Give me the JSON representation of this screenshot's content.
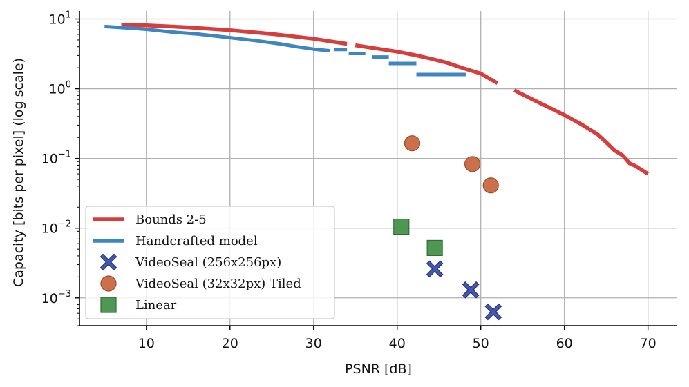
{
  "chart_data": {
    "type": "line",
    "xlabel": "PSNR [dB]",
    "ylabel": "Capacity [bits per pixel] (log scale)",
    "yscale": "log",
    "xlim": [
      2,
      73.5
    ],
    "ylim": [
      0.0004,
      13
    ],
    "xticks": [
      10,
      20,
      30,
      40,
      50,
      60,
      70
    ],
    "yticks": [
      {
        "value": 0.001,
        "base": "10",
        "exp": "−3"
      },
      {
        "value": 0.01,
        "base": "10",
        "exp": "−2"
      },
      {
        "value": 0.1,
        "base": "10",
        "exp": "−1"
      },
      {
        "value": 1,
        "base": "10",
        "exp": "0"
      },
      {
        "value": 10,
        "base": "10",
        "exp": "1"
      }
    ],
    "grid": true,
    "legend_position": "lower-left",
    "series": [
      {
        "name": "Bounds 2-5",
        "kind": "line",
        "color": "#d63e3e",
        "segments": [
          [
            [
              7,
              8.2
            ],
            [
              10,
              8.1
            ],
            [
              15,
              7.6
            ],
            [
              20,
              6.9
            ],
            [
              25,
              6.1
            ],
            [
              30,
              5.2
            ],
            [
              34,
              4.4
            ]
          ],
          [
            [
              35,
              4.2
            ],
            [
              38,
              3.7
            ],
            [
              40,
              3.4
            ],
            [
              42,
              3.05
            ],
            [
              44,
              2.7
            ],
            [
              46,
              2.35
            ],
            [
              48,
              1.95
            ],
            [
              50,
              1.65
            ],
            [
              52,
              1.2
            ]
          ],
          [
            [
              54,
              0.95
            ],
            [
              56,
              0.72
            ],
            [
              58,
              0.55
            ],
            [
              60,
              0.42
            ],
            [
              62,
              0.31
            ],
            [
              64,
              0.22
            ],
            [
              65,
              0.17
            ],
            [
              66,
              0.13
            ],
            [
              67,
              0.11
            ],
            [
              67.8,
              0.085
            ],
            [
              68.5,
              0.078
            ],
            [
              70,
              0.06
            ]
          ]
        ]
      },
      {
        "name": "Handcrafted model",
        "kind": "line",
        "color": "#3d86c0",
        "segments": [
          [
            [
              5,
              7.8
            ],
            [
              8,
              7.4
            ],
            [
              10,
              7.1
            ],
            [
              13,
              6.5
            ],
            [
              16,
              6.1
            ],
            [
              20,
              5.4
            ],
            [
              23,
              4.9
            ],
            [
              26,
              4.4
            ],
            [
              28,
              4.0
            ],
            [
              30,
              3.7
            ],
            [
              32,
              3.5
            ]
          ],
          [
            [
              32.5,
              3.65
            ],
            [
              34,
              3.65
            ]
          ],
          [
            [
              34.2,
              3.2
            ],
            [
              36.2,
              3.2
            ]
          ],
          [
            [
              37,
              2.85
            ],
            [
              39,
              2.85
            ]
          ],
          [
            [
              39,
              2.3
            ],
            [
              42.3,
              2.3
            ]
          ],
          [
            [
              42.3,
              1.6
            ],
            [
              48.2,
              1.6
            ]
          ]
        ]
      },
      {
        "name": "VideoSeal (256x256px)",
        "kind": "scatter",
        "marker": "X",
        "color": "#3a4fa8",
        "points": [
          [
            44.5,
            0.0026
          ],
          [
            48.8,
            0.0013
          ],
          [
            51.5,
            0.00063
          ]
        ]
      },
      {
        "name": "VideoSeal (32x32px) Tiled",
        "kind": "scatter",
        "marker": "circle",
        "color": "#c8643c",
        "points": [
          [
            41.8,
            0.165
          ],
          [
            49.0,
            0.083
          ],
          [
            51.2,
            0.041
          ]
        ]
      },
      {
        "name": "Linear",
        "kind": "scatter",
        "marker": "square",
        "color": "#3f8f45",
        "points": [
          [
            40.5,
            0.0105
          ],
          [
            44.5,
            0.0052
          ]
        ]
      }
    ]
  }
}
